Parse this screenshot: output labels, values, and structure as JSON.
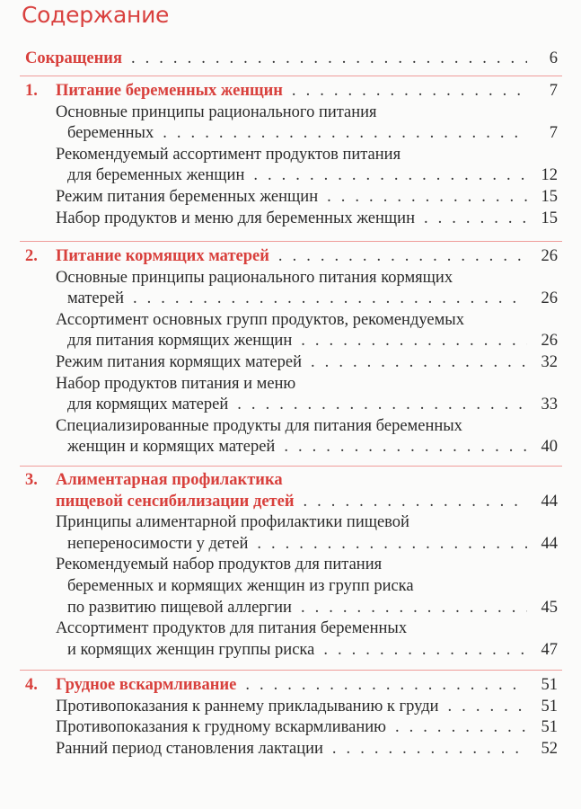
{
  "title": "Содержание",
  "accent_color": "#d8403c",
  "sections": [
    {
      "entries": [
        {
          "heading": true,
          "number": "",
          "lines": [
            "Сокращения"
          ],
          "page": "6"
        }
      ]
    },
    {
      "entries": [
        {
          "heading": true,
          "number": "1.",
          "lines": [
            "Питание беременных женщин"
          ],
          "page": "7"
        },
        {
          "heading": false,
          "lines": [
            "Основные принципы рационального питания",
            "беременных"
          ],
          "page": "7"
        },
        {
          "heading": false,
          "lines": [
            "Рекомендуемый ассортимент продуктов питания",
            "для беременных женщин"
          ],
          "page": "12"
        },
        {
          "heading": false,
          "lines": [
            "Режим питания беременных женщин"
          ],
          "page": "15"
        },
        {
          "heading": false,
          "lines": [
            "Набор продуктов и меню для беременных женщин"
          ],
          "page": "15"
        }
      ]
    },
    {
      "entries": [
        {
          "heading": true,
          "number": "2.",
          "lines": [
            "Питание кормящих матерей"
          ],
          "page": "26"
        },
        {
          "heading": false,
          "lines": [
            "Основные принципы рационального питания кормящих",
            "матерей"
          ],
          "page": "26"
        },
        {
          "heading": false,
          "lines": [
            "Ассортимент основных групп продуктов, рекомендуемых",
            "для питания кормящих женщин"
          ],
          "page": "26"
        },
        {
          "heading": false,
          "lines": [
            "Режим питания кормящих матерей"
          ],
          "page": "32"
        },
        {
          "heading": false,
          "lines": [
            "Набор продуктов питания и меню",
            "для кормящих матерей"
          ],
          "page": "33"
        },
        {
          "heading": false,
          "lines": [
            "Специализированные продукты для питания беременных",
            "женщин и кормящих матерей"
          ],
          "page": "40"
        }
      ]
    },
    {
      "entries": [
        {
          "heading": true,
          "number": "3.",
          "lines": [
            "Алиментарная профилактика",
            "пищевой сенсибилизации детей"
          ],
          "page": "44"
        },
        {
          "heading": false,
          "lines": [
            "Принципы алиментарной профилактики пищевой",
            "непереносимости у детей"
          ],
          "page": "44"
        },
        {
          "heading": false,
          "lines": [
            "Рекомендуемый набор продуктов для питания",
            "беременных и кормящих женщин из групп риска",
            "по развитию пищевой аллергии"
          ],
          "page": "45"
        },
        {
          "heading": false,
          "lines": [
            "Ассортимент продуктов для питания беременных",
            "и кормящих женщин группы риска"
          ],
          "page": "47"
        }
      ]
    },
    {
      "entries": [
        {
          "heading": true,
          "number": "4.",
          "lines": [
            "Грудное вскармливание"
          ],
          "page": "51"
        },
        {
          "heading": false,
          "lines": [
            "Противопоказания к раннему прикладыванию к груди"
          ],
          "page": "51"
        },
        {
          "heading": false,
          "lines": [
            "Противопоказания к грудному вскармливанию"
          ],
          "page": "51"
        },
        {
          "heading": false,
          "lines": [
            "Ранний период становления лактации"
          ],
          "page": "52"
        }
      ]
    }
  ]
}
